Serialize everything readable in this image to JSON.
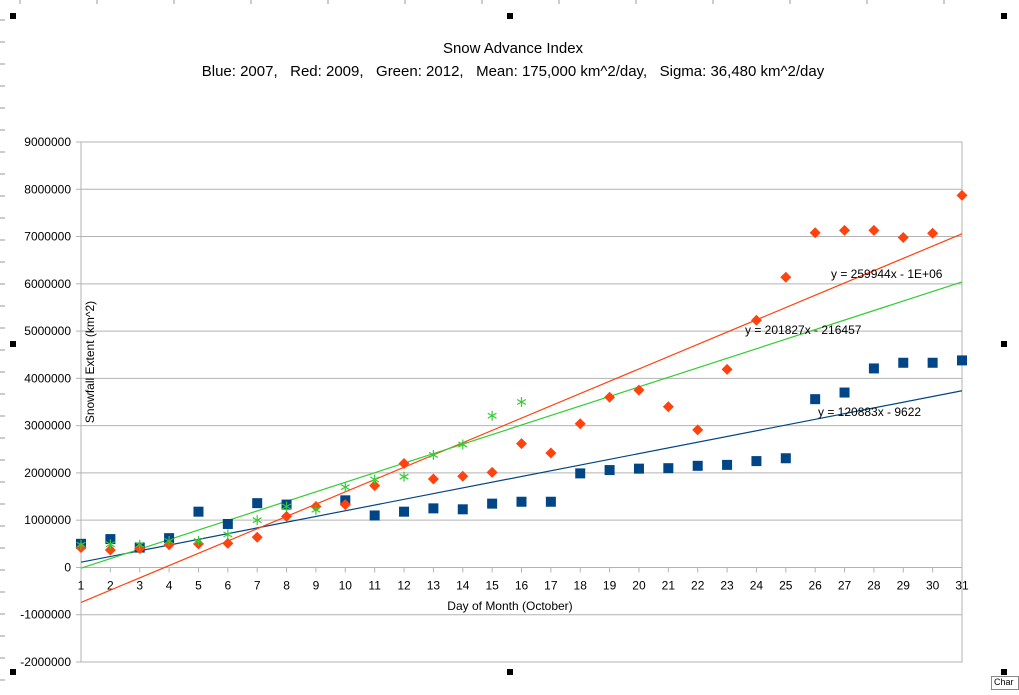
{
  "chart_data": {
    "type": "scatter",
    "title": "Snow Advance Index",
    "subtitle": "Blue: 2007,   Red: 2009,   Green: 2012,   Mean: 175,000 km^2/day,   Sigma: 36,480 km^2/day",
    "xlabel": "Day of Month (October)",
    "ylabel": "Snowfall Extent (km^2)",
    "x": [
      1,
      2,
      3,
      4,
      5,
      6,
      7,
      8,
      9,
      10,
      11,
      12,
      13,
      14,
      15,
      16,
      17,
      18,
      19,
      20,
      21,
      22,
      23,
      24,
      25,
      26,
      27,
      28,
      29,
      30,
      31
    ],
    "xlim": [
      1,
      31
    ],
    "ylim": [
      -2000000,
      9000000
    ],
    "yticks": [
      -2000000,
      -1000000,
      0,
      1000000,
      2000000,
      3000000,
      4000000,
      5000000,
      6000000,
      7000000,
      8000000,
      9000000
    ],
    "grid": true,
    "series": [
      {
        "color": "#004586",
        "marker": "square",
        "x": [
          1,
          2,
          3,
          4,
          5,
          6,
          7,
          8,
          10,
          11,
          12,
          13,
          14,
          15,
          16,
          17,
          18,
          19,
          20,
          21,
          22,
          23,
          24,
          25,
          26,
          27,
          28,
          29,
          30,
          31
        ],
        "values": [
          500000,
          600000,
          420000,
          620000,
          1180000,
          920000,
          1360000,
          1330000,
          1420000,
          1100000,
          1180000,
          1250000,
          1230000,
          1350000,
          1390000,
          1390000,
          1990000,
          2060000,
          2090000,
          2100000,
          2150000,
          2170000,
          2250000,
          2310000,
          3560000,
          3700000,
          4210000,
          4330000,
          4330000,
          4380000
        ],
        "trend_label": "y = 120883x - 9622",
        "trend": [
          120883,
          -9622
        ]
      },
      {
        "color": "#ff420e",
        "marker": "diamond",
        "x": [
          1,
          2,
          3,
          4,
          5,
          6,
          7,
          8,
          9,
          10,
          11,
          12,
          13,
          14,
          15,
          16,
          17,
          18,
          19,
          20,
          21,
          22,
          23,
          24,
          25,
          26,
          27,
          28,
          29,
          30,
          31
        ],
        "values": [
          420000,
          370000,
          400000,
          480000,
          500000,
          510000,
          640000,
          1080000,
          1290000,
          1330000,
          1730000,
          2200000,
          1870000,
          1930000,
          2010000,
          2620000,
          2420000,
          3040000,
          3600000,
          3750000,
          3400000,
          2910000,
          4190000,
          5230000,
          6140000,
          7080000,
          7130000,
          7130000,
          6980000,
          7070000,
          7870000
        ],
        "trend_label": "y = 259944x - 1E+06",
        "trend": [
          259944,
          -1000000
        ]
      },
      {
        "color": "#33cc33",
        "marker": "asterisk",
        "x": [
          1,
          2,
          3,
          4,
          5,
          6,
          7,
          8,
          9,
          10,
          11,
          12,
          13,
          14,
          15,
          16
        ],
        "values": [
          480000,
          490000,
          480000,
          560000,
          560000,
          700000,
          1000000,
          1290000,
          1220000,
          1700000,
          1860000,
          1920000,
          2380000,
          2600000,
          3210000,
          3500000
        ],
        "trend_label": "y = 201827x - 216457",
        "trend": [
          201827,
          -216457
        ]
      }
    ]
  }
}
